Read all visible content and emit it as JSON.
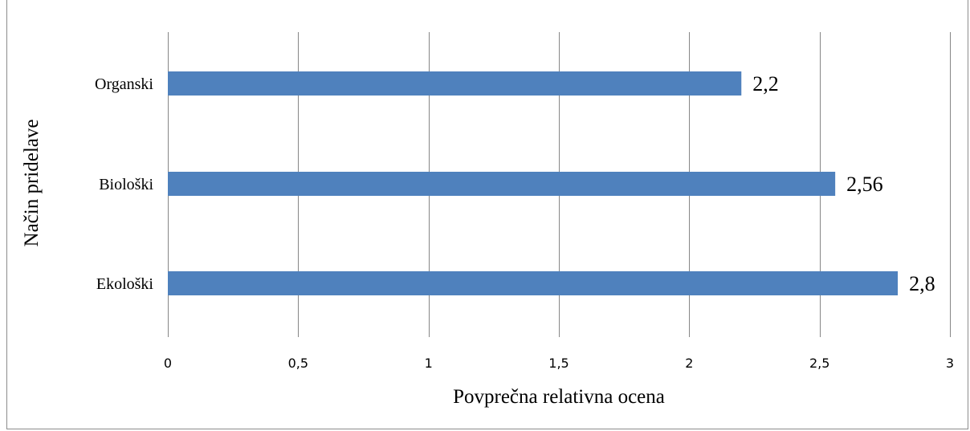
{
  "chart_data": {
    "type": "bar",
    "orientation": "horizontal",
    "categories": [
      "Organski",
      "Biološki",
      "Ekološki"
    ],
    "values": [
      2.2,
      2.56,
      2.8
    ],
    "data_labels": [
      "2,2",
      "2,56",
      "2,8"
    ],
    "xlabel": "Povprečna relativna ocena",
    "ylabel": "Način pridelave",
    "xlim": [
      0,
      3
    ],
    "xticks": [
      0,
      0.5,
      1,
      1.5,
      2,
      2.5,
      3
    ],
    "xtick_labels": [
      "0",
      "0,5",
      "1",
      "1,5",
      "2",
      "2,5",
      "3"
    ],
    "grid": "vertical",
    "bar_color": "#4f81bd",
    "gridline_color": "#868686"
  }
}
